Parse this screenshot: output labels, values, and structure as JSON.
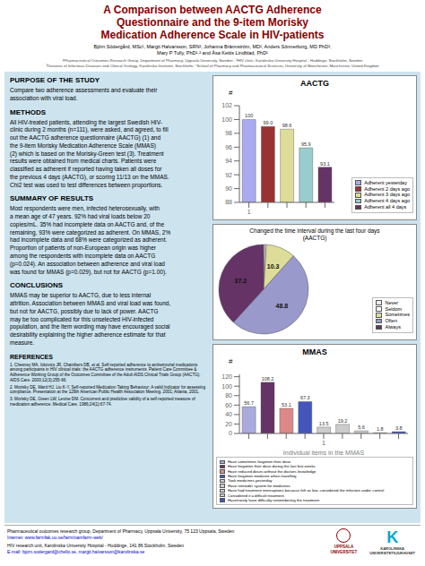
{
  "title": "A Comparison between AACTG Adherence\nQuestionnaire and the 9-item Morisky\nMedication Adherence Scale in HIV-patients",
  "annotations": [
    "Björn Södergård, MSc¹, Margit Halvarsson, SRN², Johanna Brännström, MD², Anders Sönnerborg, MD PhD²,",
    "Mary P Tully, PhD¹·² and Åsa Kettis Lindblad, PhD¹",
    "¹Pharmaceutical Outcomes Research Group, Department of Pharmacy, Uppsala University, Sweden , ²HIV clinic, Karolinska University Hospital - Huddinge, Stockholm, Sweden",
    "³Divisions of Infectious Diseases and Clinical Virology, Karolinska Institutet, Stockholm, ⁴School of Pharmacy and Pharmaceutical Sciences, University of Manchester, Manchester, United Kingdom",
    "PURPOSE OF THE STUDY",
    "Compare two adherence assessments and evaluate their\nassociation with viral load.",
    "METHODS",
    "All HIV-treated patients, attending the largest Swedish HIV-\nclinic during 2 months (n=111), were asked, and agreed, to fill\nout the AACTG adherence questionnaire (AACTG) (1) and\nthe 9-item Morisky Medication Adherence Scale (MMAS)\n(2) which is based on the Morisky-Green test (3). Treatment\nresults were obtained from medical charts. Patients were\nclassified as adherent if reported having taken all doses for\nthe previous 4 days (AACTG), or scoring 11/13 on the MMAS.\nChi2 test was used to test differences between proportions.",
    "SUMMARY OF RESULTS",
    "Most respondents were men, infected heterosexually, with\na mean age of 47 years. 92% had viral loads below 20\ncopies/mL. 35% had incomplete data on AACTG and, of the\nremaining, 93% were categorized as adherent. On MMAS, 2%\nhad incomplete data and 68% were categorized as adherent.\nProportion of patients of non-European origin was higher\namong the respondents with incomplete data on AACTG\n(p=0.024). An association between adherence and viral load\nwas found for MMAS (p=0.029), but not for AACTG (p=1.00).",
    "CONCLUSIONS",
    "MMAS may be superior to AACTG, due to less internal\nattrition. Association between MMAS and viral load was found,\nbut not for AACTG, possibly due to lack of power. AACTG\nmay be too complicated for this unselected HIV-infected\npopulation, and the item wording may have encouraged social\ndesirability explaining the higher adherence estimate for that\nmeasure.",
    "REFERENCES",
    "1. Chesney MA, Ickovics JR, Chambers DB, et al. Self-reported adherence to antiretroviral medications among participants in HIV clinical trials: the AACTG adherence instruments. Patient Care Committee & Adherence Working Group of the Outcomes Committee of the Adult AIDS Clinical Trials Group (AACTG). AIDS Care. 2000;12(3):255-66.",
    "2. Morisky DE, Ward HJ, Liu K-Y. Self-reported Medication Taking Behaviour: A valid Indicator for assessing compliance. Presentation at the 129th American Public Health Association Meeting. 2001; Atlanta, 2001.",
    "3. Morisky DE, Green LW, Levine DM. Concurrent and predictive validity of a self-reported measure of medication adherence. Medical Care. 1986;24(1):67-74.",
    "Pharmaceutical outcomes research group, Department of Pharmacy, Uppsala University, 75 123 Uppsala, Sweden",
    "Internet: www.farmfak.uu.se/farm/oamfarm-web/",
    "HIV research unit, Karolinska University Hospital - Huddinge, 141 86 Stockholm, Sweden",
    "E-mail: bjorn.sodergard@chello.se, margit.halvarsson@karolinska.se",
    "UPPSALA\nUNIVERSITET",
    "K",
    "KAROLINSKA\nUNIVERSITETSJUKHUSET"
  ],
  "chart_data": [
    {
      "type": "bar",
      "title": "AACTG",
      "ylabel": "#",
      "categories": [
        "1",
        null,
        null,
        null,
        null
      ],
      "series": [
        {
          "name": "Adherent yesterday",
          "color": "#aaaaee",
          "values": [
            100,
            null,
            null,
            null,
            null
          ],
          "value_labels": [
            "100",
            null,
            null,
            null,
            null
          ]
        },
        {
          "name": "Adherent 2 days ago",
          "color": "#993333",
          "values": [
            null,
            99.0,
            null,
            null,
            null
          ],
          "value_labels": [
            null,
            "99.0",
            null,
            null,
            null
          ]
        },
        {
          "name": "Adherent 3 days ago",
          "color": "#dddd99",
          "values": [
            null,
            null,
            98.6,
            null,
            null
          ],
          "value_labels": [
            null,
            null,
            "98.6",
            null,
            null
          ]
        },
        {
          "name": "Adherent 4 days ago",
          "color": "#99cccc",
          "values": [
            null,
            null,
            null,
            95.9,
            null
          ],
          "value_labels": [
            null,
            null,
            null,
            "95.9",
            null
          ]
        },
        {
          "name": "Adherent all 4 days",
          "color": "#663366",
          "values": [
            null,
            null,
            null,
            null,
            93.1
          ],
          "value_labels": [
            null,
            null,
            null,
            null,
            "93.1"
          ]
        }
      ],
      "ylim": [
        88,
        102
      ],
      "yticks": [
        88,
        90,
        92,
        94,
        96,
        98,
        100,
        102
      ],
      "grid": false,
      "legend": "lower right",
      "data_labels": true
    },
    {
      "type": "pie",
      "title": "Changed the time interval during the last four days\n(AACTG)",
      "categories": [
        "Never",
        "Seldom",
        "Sometimes",
        "Often",
        "Always"
      ],
      "values": [
        0.5,
        0.5,
        10.3,
        48.8,
        37.2
      ],
      "colors": [
        "#eeeeee",
        "#ffffff",
        "#dddd99",
        "#9999cc",
        "#663366"
      ],
      "value_labels": [
        null,
        null,
        "10.3",
        "48.8",
        "37.2"
      ],
      "legend": "lower right",
      "data_labels": true
    },
    {
      "type": "bar",
      "title": "MMAS",
      "xlabel": "Individual items in the MMAS",
      "ylabel": "#",
      "categories": [
        null,
        null,
        null,
        null,
        "1",
        null,
        null,
        null,
        null
      ],
      "series": [
        {
          "name": "Have sometimes forgotten their dose",
          "color": "#aaaadd",
          "values": [
            56.7,
            null,
            null,
            null,
            null,
            null,
            null,
            null,
            null
          ]
        },
        {
          "name": "Have forgotten their dose during the last few weeks",
          "color": "#663366",
          "values": [
            null,
            108.2,
            null,
            null,
            null,
            null,
            null,
            null,
            null
          ]
        },
        {
          "name": "Have reduced doses without the doctors knowledge",
          "color": "#dd8888",
          "values": [
            null,
            null,
            53.1,
            null,
            null,
            null,
            null,
            null,
            null
          ]
        },
        {
          "name": "Have forgotten medicine when travelling",
          "color": "#4455bb",
          "values": [
            null,
            null,
            null,
            67.3,
            null,
            null,
            null,
            null,
            null
          ]
        },
        {
          "name": "Took medicines yesterday",
          "color": "#cccccc",
          "values": [
            null,
            null,
            null,
            null,
            13.5,
            null,
            null,
            null,
            null
          ]
        },
        {
          "name": "Have reminder system for medicines",
          "color": "#cccccc",
          "values": [
            null,
            null,
            null,
            null,
            null,
            19.2,
            null,
            null,
            null
          ]
        },
        {
          "name": "Have had treatment interruptions because felt so low, considered the infection under control",
          "color": "#cccccc",
          "values": [
            null,
            null,
            null,
            null,
            null,
            null,
            5.6,
            null,
            null
          ]
        },
        {
          "name": "Considered it a difficult treatment",
          "color": "#cccccc",
          "values": [
            null,
            null,
            null,
            null,
            null,
            null,
            null,
            1.8,
            null
          ]
        },
        {
          "name": "Have/rarely have difficulty remembering the treatment",
          "color": "#4455bb",
          "values": [
            null,
            null,
            null,
            null,
            null,
            null,
            null,
            null,
            3.8
          ]
        }
      ],
      "ylim": [
        0,
        125
      ],
      "yticks": [
        0,
        20,
        40,
        60,
        80,
        100,
        120
      ],
      "grid": false,
      "legend": "bottom",
      "data_labels": true
    }
  ]
}
